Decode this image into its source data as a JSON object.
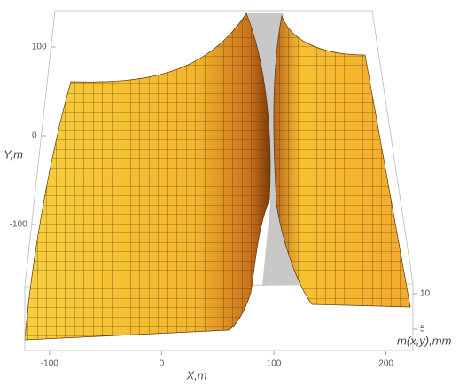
{
  "chart_data": {
    "type": "surface3d",
    "x_label": "X,m",
    "y_label": "Y,m",
    "z_label": "m(x,y),mm",
    "xlim": [
      -122,
      224
    ],
    "xticks": [
      -100,
      0,
      100,
      200
    ],
    "ylim": [
      -170,
      140
    ],
    "yticks": [
      -100,
      0,
      100
    ],
    "zlim": [
      2,
      11
    ],
    "zticks": [
      5,
      10
    ],
    "color": "#f2b731"
  }
}
